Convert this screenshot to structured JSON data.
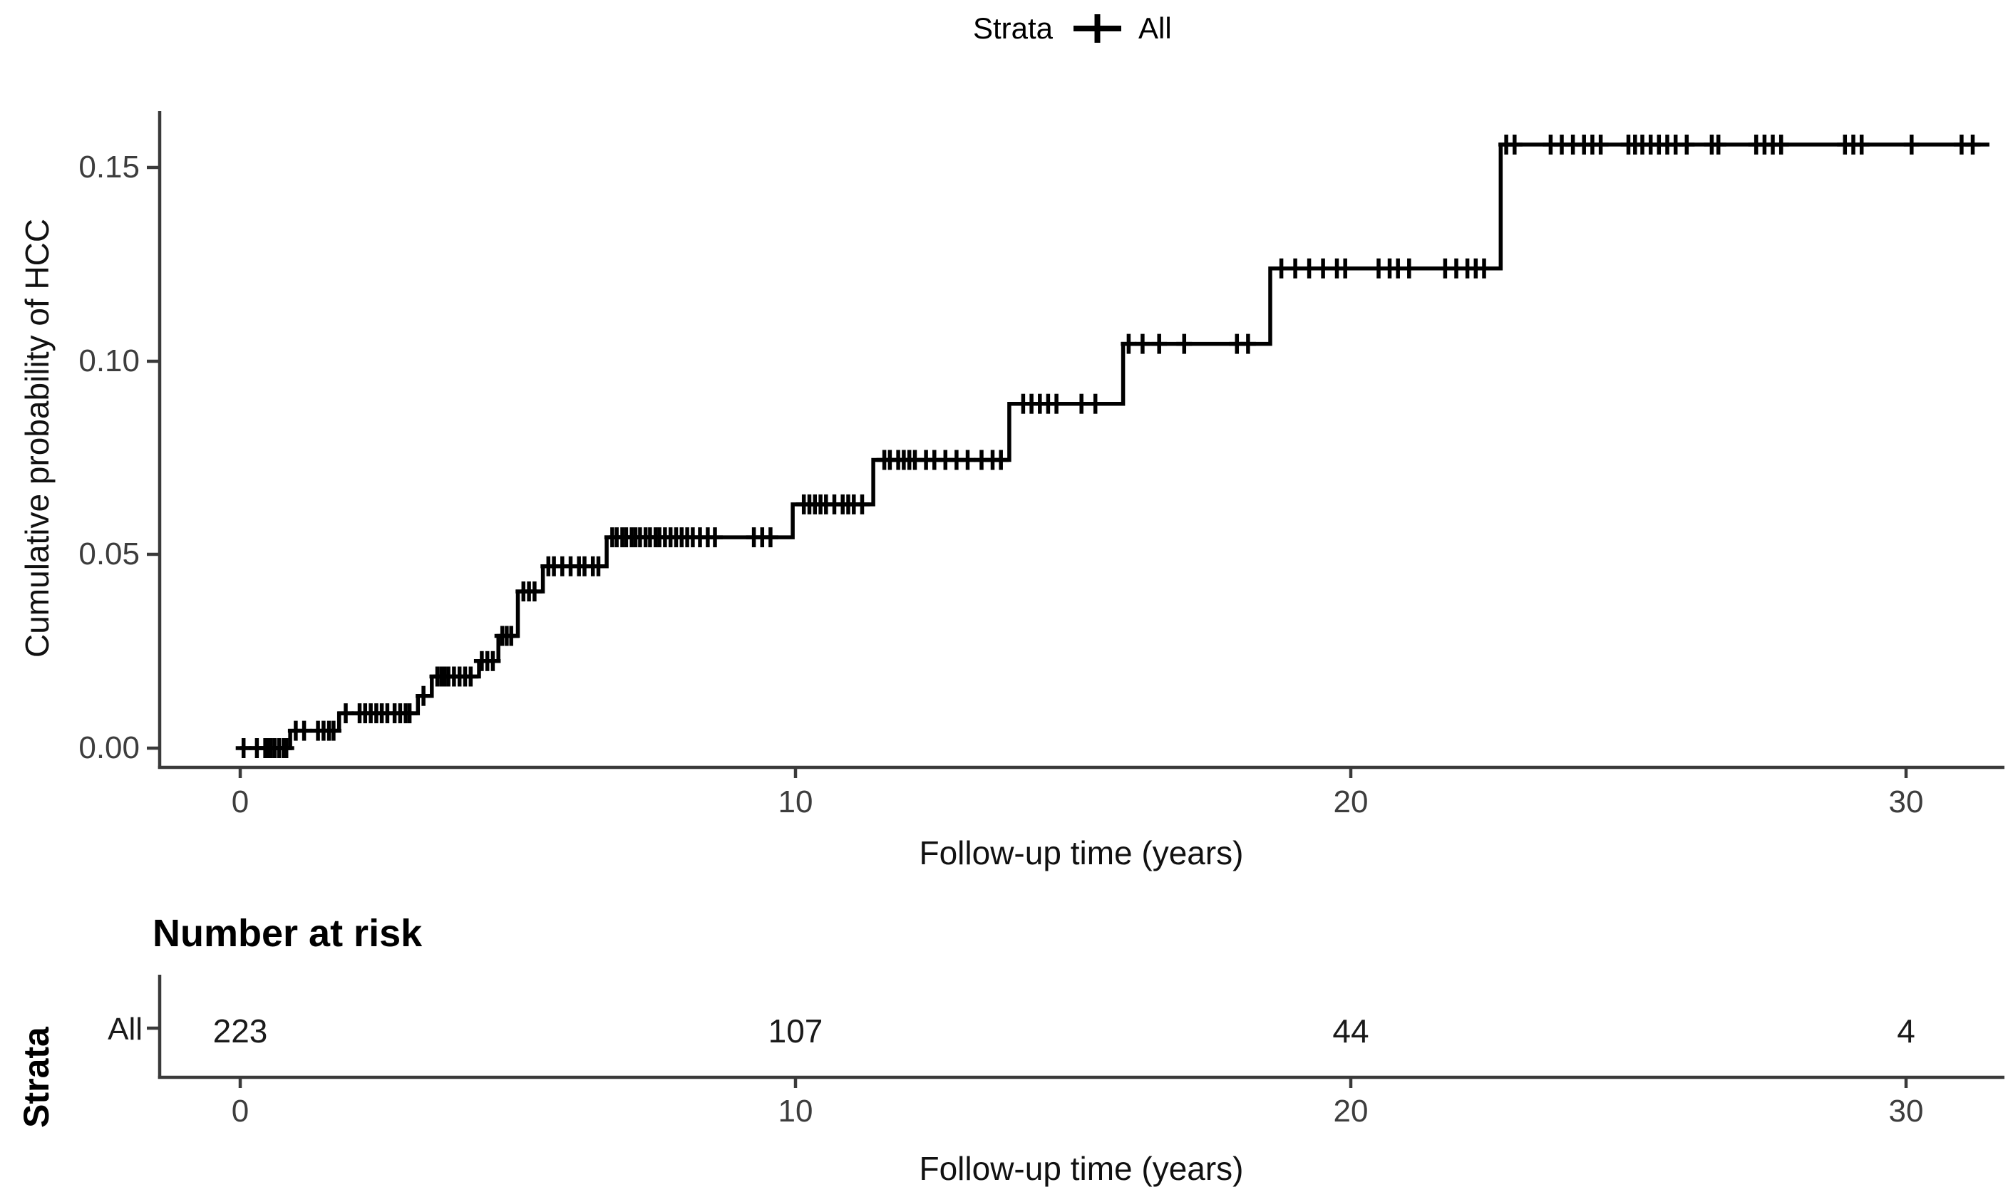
{
  "figure": {
    "background": "#ffffff"
  },
  "legend": {
    "title": "Strata",
    "symbol": "plus-censor-mark",
    "item": "All"
  },
  "main_plot": {
    "y_axis_title": "Cumulative probability of HCC",
    "x_axis_title": "Follow-up time (years)",
    "y_ticks": [
      {
        "value": 0.15,
        "label": "0.15"
      },
      {
        "value": 0.1,
        "label": "0.10"
      },
      {
        "value": 0.05,
        "label": "0.05"
      },
      {
        "value": 0.0,
        "label": "0.00"
      }
    ],
    "x_ticks": [
      {
        "value": 0,
        "label": "0"
      },
      {
        "value": 10,
        "label": "10"
      },
      {
        "value": 20,
        "label": "20"
      },
      {
        "value": 30,
        "label": "30"
      }
    ]
  },
  "risk_table": {
    "title": "Number at risk",
    "axis_label": "Strata",
    "row_label": "All",
    "x_axis_title": "Follow-up time (years)",
    "x_ticks": [
      {
        "value": 0,
        "label": "0"
      },
      {
        "value": 10,
        "label": "10"
      },
      {
        "value": 20,
        "label": "20"
      },
      {
        "value": 30,
        "label": "30"
      }
    ],
    "values": [
      {
        "time": 0,
        "label": "223"
      },
      {
        "time": 10,
        "label": "107"
      },
      {
        "time": 20,
        "label": "44"
      },
      {
        "time": 30,
        "label": "4"
      }
    ]
  },
  "colors": {
    "curve": "#000000",
    "axis_line": "#3a3a3a",
    "tick_label": "#3d3d3d",
    "title_text": "#111111"
  },
  "chart_data": {
    "type": "line",
    "subtype": "kaplan-meier-cumulative-incidence-step",
    "title": "",
    "xlabel": "Follow-up time (years)",
    "ylabel": "Cumulative probability of HCC",
    "xlim": [
      -1.5,
      31.8
    ],
    "ylim": [
      0,
      0.164
    ],
    "xticks": [
      0,
      10,
      20,
      30
    ],
    "yticks": [
      0.0,
      0.05,
      0.1,
      0.15
    ],
    "grid": false,
    "legend_position": "top",
    "series": [
      {
        "name": "All",
        "steps": [
          [
            0,
            0.0
          ],
          [
            0.9,
            0.0045
          ],
          [
            1.78,
            0.009
          ],
          [
            3.2,
            0.0135
          ],
          [
            3.45,
            0.0185
          ],
          [
            4.3,
            0.0225
          ],
          [
            4.65,
            0.029
          ],
          [
            5.0,
            0.0405
          ],
          [
            5.45,
            0.047
          ],
          [
            6.6,
            0.0545
          ],
          [
            9.95,
            0.063
          ],
          [
            11.4,
            0.0745
          ],
          [
            13.85,
            0.089
          ],
          [
            15.9,
            0.1045
          ],
          [
            18.55,
            0.124
          ],
          [
            22.7,
            0.156
          ]
        ],
        "end_time": 31.5,
        "censor_marks": [
          [
            0.06,
            0.0
          ],
          [
            0.3,
            0.0
          ],
          [
            0.45,
            0.0
          ],
          [
            0.5,
            0.0
          ],
          [
            0.55,
            0.0
          ],
          [
            0.62,
            0.0
          ],
          [
            0.7,
            0.0
          ],
          [
            0.78,
            0.0
          ],
          [
            0.83,
            0.0
          ],
          [
            1.0,
            0.0045
          ],
          [
            1.15,
            0.0045
          ],
          [
            1.4,
            0.0045
          ],
          [
            1.5,
            0.0045
          ],
          [
            1.6,
            0.0045
          ],
          [
            1.68,
            0.0045
          ],
          [
            1.9,
            0.009
          ],
          [
            2.15,
            0.009
          ],
          [
            2.25,
            0.009
          ],
          [
            2.35,
            0.009
          ],
          [
            2.45,
            0.009
          ],
          [
            2.55,
            0.009
          ],
          [
            2.65,
            0.009
          ],
          [
            2.78,
            0.009
          ],
          [
            2.88,
            0.009
          ],
          [
            2.98,
            0.009
          ],
          [
            3.05,
            0.009
          ],
          [
            3.3,
            0.0135
          ],
          [
            3.55,
            0.0185
          ],
          [
            3.62,
            0.0185
          ],
          [
            3.68,
            0.0185
          ],
          [
            3.75,
            0.0185
          ],
          [
            3.85,
            0.0185
          ],
          [
            3.95,
            0.0185
          ],
          [
            4.05,
            0.0185
          ],
          [
            4.15,
            0.0185
          ],
          [
            4.35,
            0.0225
          ],
          [
            4.45,
            0.0225
          ],
          [
            4.55,
            0.0225
          ],
          [
            4.72,
            0.029
          ],
          [
            4.8,
            0.029
          ],
          [
            4.88,
            0.029
          ],
          [
            5.1,
            0.0405
          ],
          [
            5.2,
            0.0405
          ],
          [
            5.3,
            0.0405
          ],
          [
            5.55,
            0.047
          ],
          [
            5.65,
            0.047
          ],
          [
            5.8,
            0.047
          ],
          [
            5.95,
            0.047
          ],
          [
            6.1,
            0.047
          ],
          [
            6.2,
            0.047
          ],
          [
            6.35,
            0.047
          ],
          [
            6.45,
            0.047
          ],
          [
            6.7,
            0.0545
          ],
          [
            6.78,
            0.0545
          ],
          [
            6.88,
            0.0545
          ],
          [
            6.95,
            0.0545
          ],
          [
            7.05,
            0.0545
          ],
          [
            7.12,
            0.0545
          ],
          [
            7.2,
            0.0545
          ],
          [
            7.3,
            0.0545
          ],
          [
            7.38,
            0.0545
          ],
          [
            7.48,
            0.0545
          ],
          [
            7.55,
            0.0545
          ],
          [
            7.65,
            0.0545
          ],
          [
            7.75,
            0.0545
          ],
          [
            7.85,
            0.0545
          ],
          [
            7.95,
            0.0545
          ],
          [
            8.05,
            0.0545
          ],
          [
            8.15,
            0.0545
          ],
          [
            8.28,
            0.0545
          ],
          [
            8.42,
            0.0545
          ],
          [
            8.55,
            0.0545
          ],
          [
            9.25,
            0.0545
          ],
          [
            9.4,
            0.0545
          ],
          [
            9.55,
            0.0545
          ],
          [
            10.15,
            0.063
          ],
          [
            10.25,
            0.063
          ],
          [
            10.35,
            0.063
          ],
          [
            10.45,
            0.063
          ],
          [
            10.55,
            0.063
          ],
          [
            10.7,
            0.063
          ],
          [
            10.85,
            0.063
          ],
          [
            10.95,
            0.063
          ],
          [
            11.05,
            0.063
          ],
          [
            11.2,
            0.063
          ],
          [
            11.6,
            0.0745
          ],
          [
            11.7,
            0.0745
          ],
          [
            11.85,
            0.0745
          ],
          [
            11.95,
            0.0745
          ],
          [
            12.05,
            0.0745
          ],
          [
            12.15,
            0.0745
          ],
          [
            12.35,
            0.0745
          ],
          [
            12.5,
            0.0745
          ],
          [
            12.7,
            0.0745
          ],
          [
            12.9,
            0.0745
          ],
          [
            13.1,
            0.0745
          ],
          [
            13.35,
            0.0745
          ],
          [
            13.55,
            0.0745
          ],
          [
            13.7,
            0.0745
          ],
          [
            14.1,
            0.089
          ],
          [
            14.25,
            0.089
          ],
          [
            14.4,
            0.089
          ],
          [
            14.55,
            0.089
          ],
          [
            14.7,
            0.089
          ],
          [
            15.15,
            0.089
          ],
          [
            15.4,
            0.089
          ],
          [
            16.0,
            0.1045
          ],
          [
            16.25,
            0.1045
          ],
          [
            16.55,
            0.1045
          ],
          [
            17.0,
            0.1045
          ],
          [
            17.95,
            0.1045
          ],
          [
            18.15,
            0.1045
          ],
          [
            18.75,
            0.124
          ],
          [
            19.0,
            0.124
          ],
          [
            19.25,
            0.124
          ],
          [
            19.5,
            0.124
          ],
          [
            19.75,
            0.124
          ],
          [
            19.9,
            0.124
          ],
          [
            20.5,
            0.124
          ],
          [
            20.7,
            0.124
          ],
          [
            20.85,
            0.124
          ],
          [
            21.05,
            0.124
          ],
          [
            21.7,
            0.124
          ],
          [
            21.9,
            0.124
          ],
          [
            22.1,
            0.124
          ],
          [
            22.25,
            0.124
          ],
          [
            22.4,
            0.124
          ],
          [
            22.8,
            0.156
          ],
          [
            22.95,
            0.156
          ],
          [
            23.6,
            0.156
          ],
          [
            23.8,
            0.156
          ],
          [
            24.0,
            0.156
          ],
          [
            24.2,
            0.156
          ],
          [
            24.35,
            0.156
          ],
          [
            24.5,
            0.156
          ],
          [
            25.0,
            0.156
          ],
          [
            25.12,
            0.156
          ],
          [
            25.25,
            0.156
          ],
          [
            25.4,
            0.156
          ],
          [
            25.55,
            0.156
          ],
          [
            25.7,
            0.156
          ],
          [
            25.85,
            0.156
          ],
          [
            26.05,
            0.156
          ],
          [
            26.5,
            0.156
          ],
          [
            26.62,
            0.156
          ],
          [
            27.3,
            0.156
          ],
          [
            27.45,
            0.156
          ],
          [
            27.6,
            0.156
          ],
          [
            27.75,
            0.156
          ],
          [
            28.9,
            0.156
          ],
          [
            29.05,
            0.156
          ],
          [
            29.2,
            0.156
          ],
          [
            30.1,
            0.156
          ],
          [
            31.0,
            0.156
          ],
          [
            31.2,
            0.156
          ]
        ]
      }
    ],
    "number_at_risk": {
      "title": "Number at risk",
      "strata_label": "Strata",
      "row": "All",
      "times": [
        0,
        10,
        20,
        30
      ],
      "values": [
        223,
        107,
        44,
        4
      ]
    }
  }
}
